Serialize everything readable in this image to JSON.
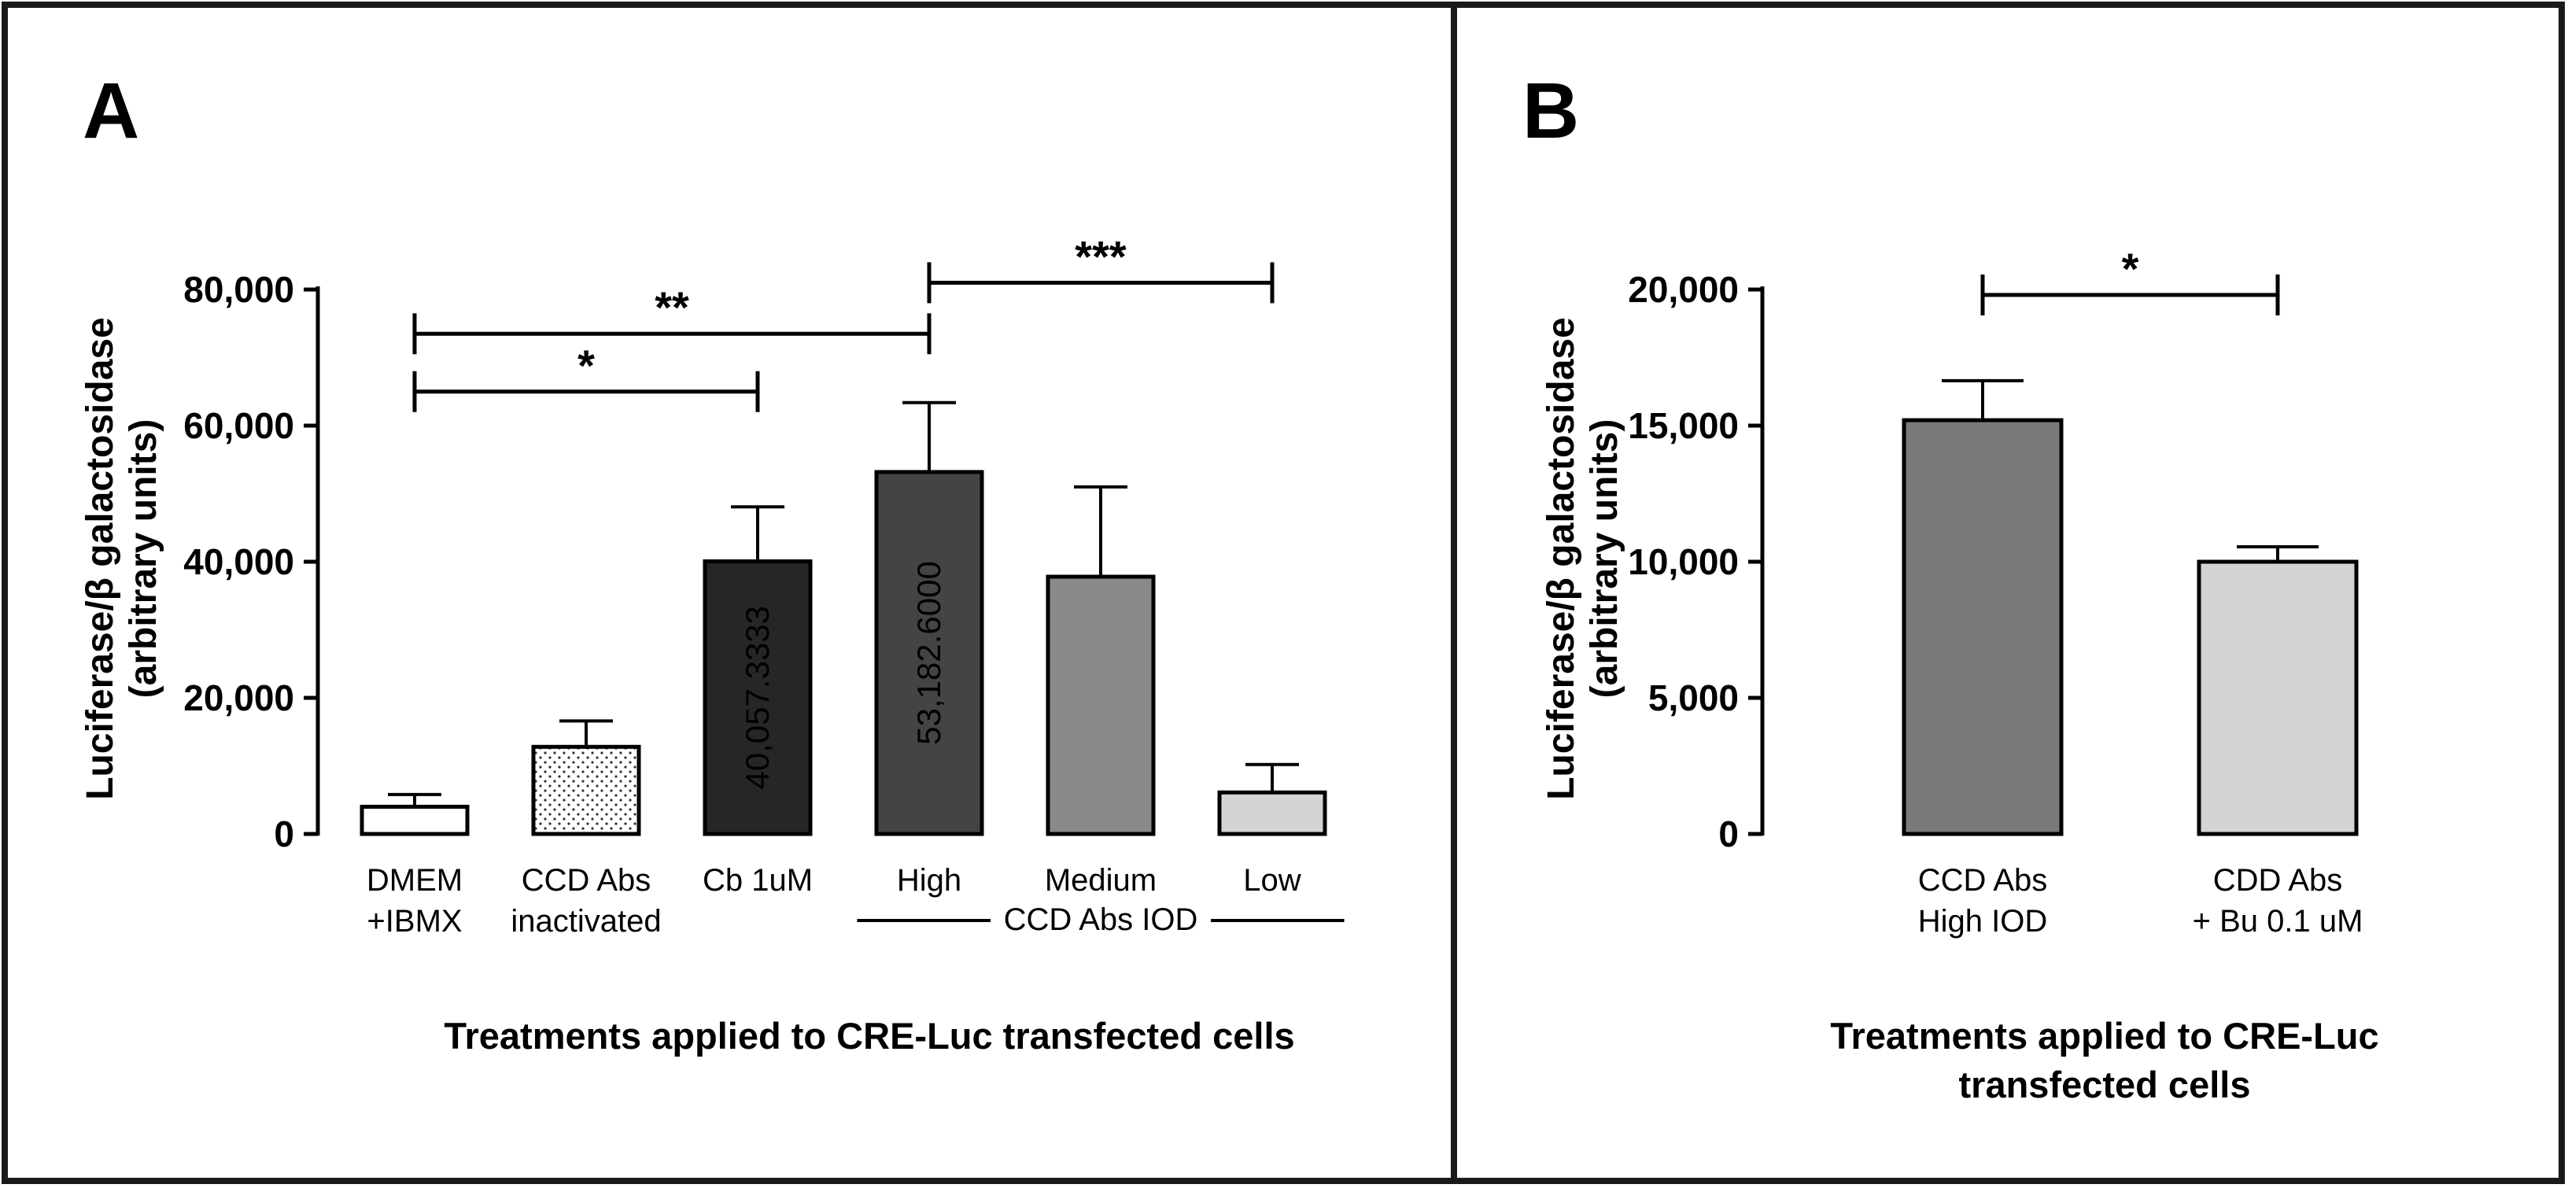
{
  "chart_data": [
    {
      "panel_label": "A",
      "type": "bar",
      "ylabel_line1": "Luciferase/β galactosidase",
      "ylabel_line2": "(arbitrary units)",
      "xlabel": "Treatments applied to CRE-Luc transfected cells",
      "ylim": [
        0,
        80000
      ],
      "yticks": [
        {
          "value": 0,
          "label": "0"
        },
        {
          "value": 20000,
          "label": "20,000"
        },
        {
          "value": 40000,
          "label": "40,000"
        },
        {
          "value": 60000,
          "label": "60,000"
        },
        {
          "value": 80000,
          "label": "80,000"
        }
      ],
      "bars": [
        {
          "line1": "DMEM",
          "line2": "+IBMX",
          "value": 4000,
          "error": 1800,
          "fill": "#ffffff",
          "pattern": "none",
          "value_label": ""
        },
        {
          "line1": "CCD Abs",
          "line2": "inactivated",
          "value": 12800,
          "error": 3800,
          "fill": "#ffffff",
          "pattern": "dots",
          "value_label": ""
        },
        {
          "line1": "Cb 1uM",
          "line2": "",
          "value": 40057.3333,
          "error": 8000,
          "fill": "#262626",
          "pattern": "none",
          "value_label": "40,057.3333"
        },
        {
          "line1": "High",
          "line2": "",
          "value": 53182.6,
          "error": 10200,
          "fill": "#444444",
          "pattern": "none",
          "value_label": "53,182.6000"
        },
        {
          "line1": "Medium",
          "line2": "",
          "value": 37800,
          "error": 13200,
          "fill": "#8a8a8d",
          "pattern": "none",
          "value_label": ""
        },
        {
          "line1": "Low",
          "line2": "",
          "value": 6100,
          "error": 4100,
          "fill": "#d4d4d4",
          "pattern": "none",
          "value_label": ""
        }
      ],
      "group_label": {
        "text": "CCD Abs IOD",
        "from_bar": 3,
        "to_bar": 5
      },
      "significance": [
        {
          "from_bar": 0,
          "to_bar": 2,
          "y": 65000,
          "label": "*"
        },
        {
          "from_bar": 0,
          "to_bar": 3,
          "y": 73500,
          "label": "**"
        },
        {
          "from_bar": 3,
          "to_bar": 5,
          "y": 81000,
          "label": "***"
        }
      ]
    },
    {
      "panel_label": "B",
      "type": "bar",
      "ylabel_line1": "Luciferase/β galactosidase",
      "ylabel_line2": "(arbitrary units)",
      "xlabel_line1": "Treatments applied to CRE-Luc",
      "xlabel_line2": "transfected cells",
      "ylim": [
        0,
        20000
      ],
      "yticks": [
        {
          "value": 0,
          "label": "0"
        },
        {
          "value": 5000,
          "label": "5,000"
        },
        {
          "value": 10000,
          "label": "10,000"
        },
        {
          "value": 15000,
          "label": "15,000"
        },
        {
          "value": 20000,
          "label": "20,000"
        }
      ],
      "bars": [
        {
          "line1": "CCD Abs",
          "line2": "High IOD",
          "value": 15200,
          "error": 1450,
          "fill": "#7a7a7a",
          "pattern": "none",
          "value_label": ""
        },
        {
          "line1": "CDD Abs",
          "line2": "+ Bu 0.1 uM",
          "value": 10000,
          "error": 550,
          "fill": "#d4d4d4",
          "pattern": "none",
          "value_label": ""
        }
      ],
      "significance": [
        {
          "from_bar": 0,
          "to_bar": 1,
          "y": 19800,
          "label": "*"
        }
      ]
    }
  ]
}
